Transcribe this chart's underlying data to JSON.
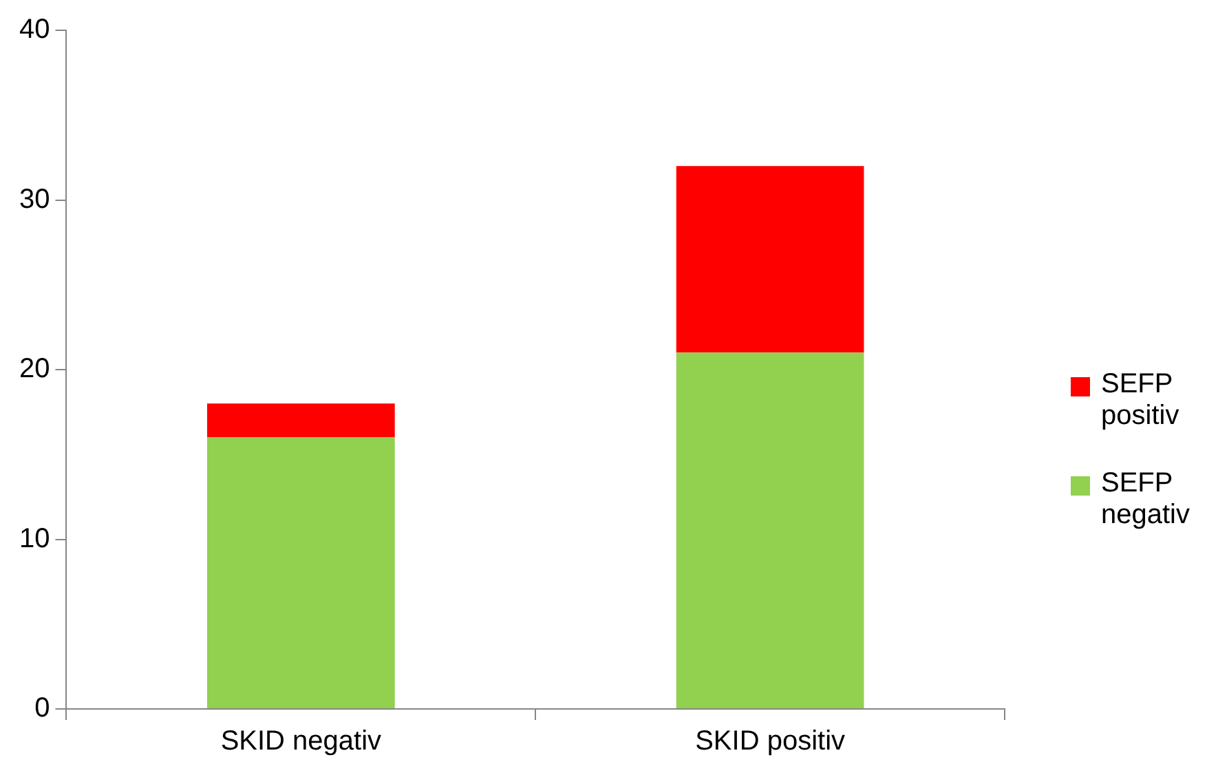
{
  "chart_data": {
    "type": "bar",
    "stacked": true,
    "categories": [
      "SKID negativ",
      "SKID positiv"
    ],
    "series": [
      {
        "name": "SEFP negativ",
        "color": "#92d050",
        "values": [
          16,
          21
        ]
      },
      {
        "name": "SEFP positiv",
        "color": "#ff0000",
        "values": [
          2,
          11
        ]
      }
    ],
    "ylim": [
      0,
      40
    ],
    "yticks": [
      0,
      10,
      20,
      30,
      40
    ],
    "grid": false,
    "legend": "right"
  }
}
